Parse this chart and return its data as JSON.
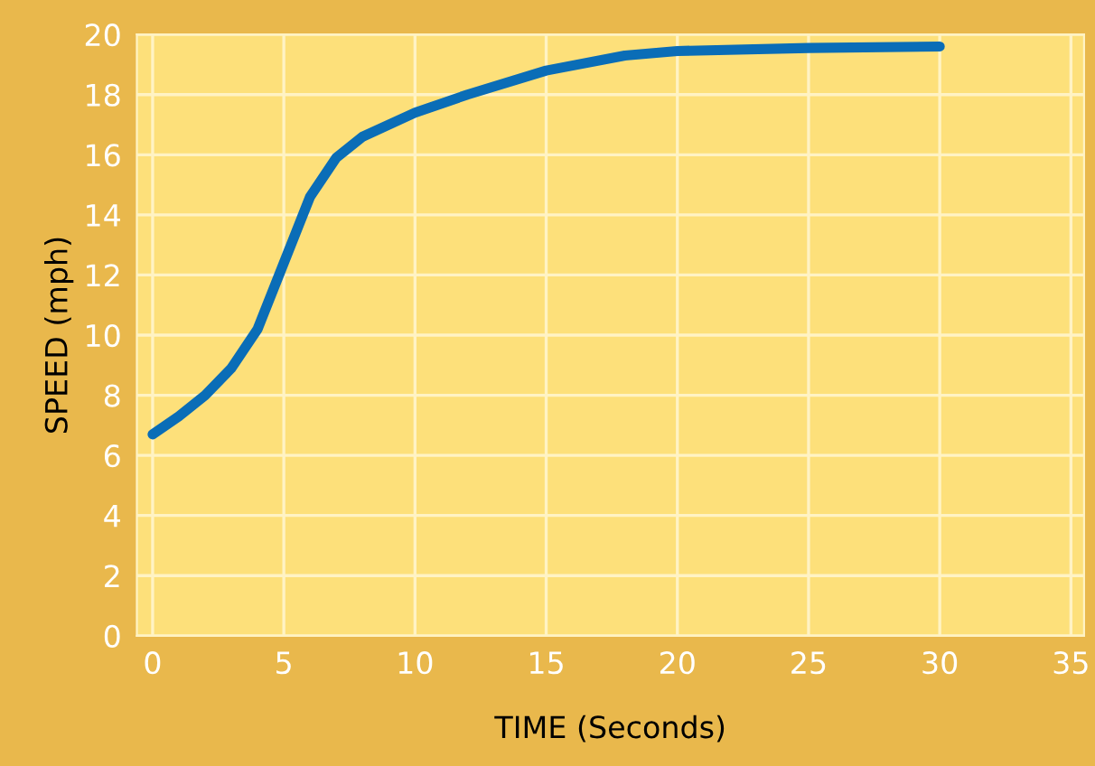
{
  "chart_data": {
    "type": "line",
    "xlabel": "TIME (Seconds)",
    "ylabel": "SPEED (mph)",
    "x": [
      0,
      1,
      2,
      3,
      4,
      5,
      6,
      7,
      8,
      10,
      12,
      15,
      18,
      20,
      25,
      30
    ],
    "series": [
      {
        "color": "#0a6db7",
        "values": [
          6.7,
          7.3,
          8.0,
          8.9,
          10.2,
          12.4,
          14.6,
          15.9,
          16.6,
          17.4,
          18.0,
          18.8,
          19.3,
          19.45,
          19.55,
          19.6
        ]
      }
    ],
    "xlim": [
      -0.6,
      35.5
    ],
    "xticks": [
      0,
      5,
      10,
      15,
      20,
      25,
      30,
      35
    ],
    "ylim": [
      0,
      20
    ],
    "yticks": [
      0,
      2,
      4,
      6,
      8,
      10,
      12,
      14,
      16,
      18,
      20
    ],
    "grid": true,
    "marker": "none",
    "line_style": "solid"
  }
}
